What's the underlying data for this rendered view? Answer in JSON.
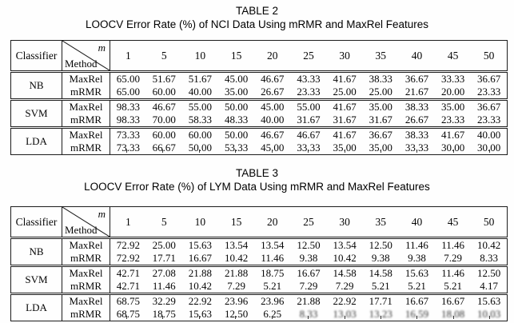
{
  "tables": [
    {
      "caption_label": "TABLE 2",
      "caption_title": "LOOCV Error Rate (%) of NCI Data Using mRMR and MaxRel Features",
      "header": {
        "classifier": "Classifier",
        "diag_top": "m",
        "diag_bottom": "Method",
        "columns": [
          "1",
          "5",
          "10",
          "15",
          "20",
          "25",
          "30",
          "35",
          "40",
          "45",
          "50"
        ]
      },
      "groups": [
        {
          "classifier": "NB",
          "rows": [
            {
              "method": "MaxRel",
              "values": [
                "65.00",
                "51.67",
                "51.67",
                "45.00",
                "46.67",
                "43.33",
                "41.67",
                "38.33",
                "36.67",
                "33.33",
                "36.67"
              ]
            },
            {
              "method": "mRMR",
              "values": [
                "65.00",
                "60.00",
                "40.00",
                "35.00",
                "26.67",
                "23.33",
                "25.00",
                "25.00",
                "21.67",
                "20.00",
                "23.33"
              ]
            }
          ]
        },
        {
          "classifier": "SVM",
          "rows": [
            {
              "method": "MaxRel",
              "values": [
                "98.33",
                "46.67",
                "55.00",
                "50.00",
                "45.00",
                "55.00",
                "41.67",
                "35.00",
                "38.33",
                "35.00",
                "36.67"
              ]
            },
            {
              "method": "mRMR",
              "values": [
                "98.33",
                "70.00",
                "58.33",
                "48.33",
                "40.00",
                "31.67",
                "31.67",
                "31.67",
                "26.67",
                "23.33",
                "23.33"
              ]
            }
          ]
        },
        {
          "classifier": "LDA",
          "rows": [
            {
              "method": "MaxRel",
              "values": [
                "73.33",
                "60.00",
                "60.00",
                "50.00",
                "46.67",
                "46.67",
                "41.67",
                "36.67",
                "38.33",
                "41.67",
                "40.00"
              ]
            },
            {
              "method": "mRMR",
              "values": [
                "73.33",
                "66.67",
                "50.00",
                "53.33",
                "45.00",
                "33.33",
                "35.00",
                "35.00",
                "33.33",
                "30.00",
                "30.00"
              ]
            }
          ]
        }
      ]
    },
    {
      "caption_label": "TABLE 3",
      "caption_title": "LOOCV Error Rate (%) of LYM Data Using mRMR and MaxRel Features",
      "header": {
        "classifier": "Classifier",
        "diag_top": "m",
        "diag_bottom": "Method",
        "columns": [
          "1",
          "5",
          "10",
          "15",
          "20",
          "25",
          "30",
          "35",
          "40",
          "45",
          "50"
        ]
      },
      "groups": [
        {
          "classifier": "NB",
          "rows": [
            {
              "method": "MaxRel",
              "values": [
                "72.92",
                "25.00",
                "15.63",
                "13.54",
                "13.54",
                "12.50",
                "13.54",
                "12.50",
                "11.46",
                "11.46",
                "10.42"
              ]
            },
            {
              "method": "mRMR",
              "values": [
                "72.92",
                "17.71",
                "16.67",
                "10.42",
                "11.46",
                "9.38",
                "10.42",
                "9.38",
                "9.38",
                "7.29",
                "8.33"
              ]
            }
          ]
        },
        {
          "classifier": "SVM",
          "rows": [
            {
              "method": "MaxRel",
              "values": [
                "42.71",
                "27.08",
                "21.88",
                "21.88",
                "18.75",
                "16.67",
                "14.58",
                "14.58",
                "15.63",
                "11.46",
                "12.50"
              ]
            },
            {
              "method": "mRMR",
              "values": [
                "42.71",
                "11.46",
                "10.42",
                "7.29",
                "5.21",
                "7.29",
                "7.29",
                "5.21",
                "5.21",
                "5.21",
                "4.17"
              ]
            }
          ]
        },
        {
          "classifier": "LDA",
          "rows": [
            {
              "method": "MaxRel",
              "values": [
                "68.75",
                "32.29",
                "22.92",
                "23.96",
                "23.96",
                "21.88",
                "22.92",
                "17.71",
                "16.67",
                "16.67",
                "15.63"
              ]
            },
            {
              "method": "mRMR",
              "values": [
                "68.75",
                "18.75",
                "15.63",
                "12.50",
                "6.25",
                "8.33",
                "13.03",
                "13.23",
                "16.59",
                "18.08",
                "10.03"
              ],
              "blur_tail": 6
            }
          ]
        }
      ]
    }
  ],
  "colors": {
    "text": "#060606",
    "border": "#1c1c1c",
    "background": "#fefefe"
  }
}
